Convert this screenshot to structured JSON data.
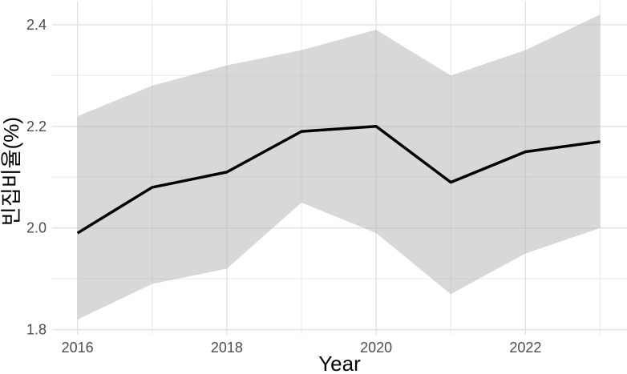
{
  "chart_data": {
    "type": "line",
    "xlabel": "Year",
    "ylabel": "빈집비율(%)",
    "x": [
      2016,
      2017,
      2018,
      2019,
      2020,
      2021,
      2022,
      2023
    ],
    "series": [
      {
        "values": [
          1.99,
          2.08,
          2.11,
          2.19,
          2.2,
          2.09,
          2.15,
          2.17
        ]
      }
    ],
    "band": {
      "lower": [
        1.82,
        1.89,
        1.92,
        2.05,
        1.99,
        1.87,
        1.95,
        2.0
      ],
      "upper": [
        2.22,
        2.28,
        2.32,
        2.35,
        2.39,
        2.3,
        2.35,
        2.42
      ]
    },
    "x_ticks": [
      2016,
      2018,
      2020,
      2022
    ],
    "x_tick_labels": [
      "2016",
      "2018",
      "2020",
      "2022"
    ],
    "x_minor_ticks": [
      2017,
      2019,
      2021,
      2023
    ],
    "y_ticks": [
      1.8,
      2.0,
      2.2,
      2.4
    ],
    "y_tick_labels": [
      "1.8",
      "2.0",
      "2.2",
      "2.4"
    ],
    "y_minor_ticks": [
      1.9,
      2.1,
      2.3
    ],
    "x_range": [
      2015.66,
      2023.36
    ],
    "y_range": [
      1.79,
      2.447
    ],
    "grid": true,
    "legend": "none",
    "colors": {
      "line": "#000000",
      "band": "#b1b1b180",
      "grid_major": "#e2e2e2",
      "grid_minor": "#ebebeb",
      "tick_text": "#4d4d4d",
      "axis_title": "#000000"
    }
  }
}
